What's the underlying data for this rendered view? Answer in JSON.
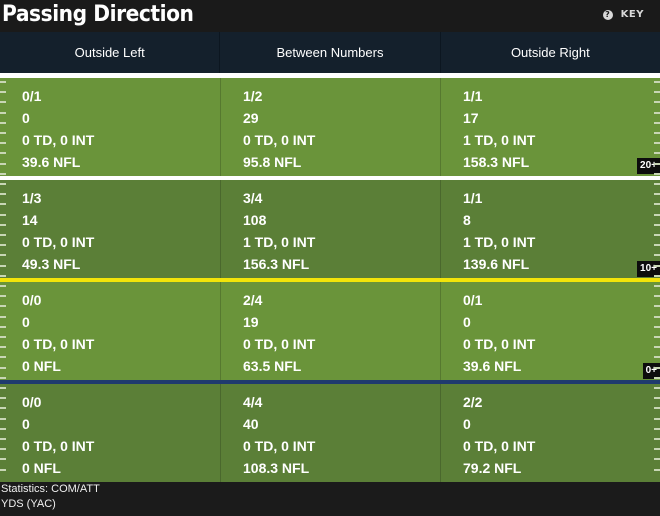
{
  "header": {
    "title": "Passing Direction",
    "key_label": "KEY"
  },
  "columns": [
    "Outside Left",
    "Between Numbers",
    "Outside Right"
  ],
  "zones": [
    {
      "label": "20+",
      "cells": [
        [
          "0/1",
          "0",
          "0 TD, 0 INT",
          "39.6 NFL"
        ],
        [
          "1/2",
          "29",
          "0 TD, 0 INT",
          "95.8 NFL"
        ],
        [
          "1/1",
          "17",
          "1 TD, 0 INT",
          "158.3 NFL"
        ]
      ]
    },
    {
      "label": "10+",
      "cells": [
        [
          "1/3",
          "14",
          "0 TD, 0 INT",
          "49.3 NFL"
        ],
        [
          "3/4",
          "108",
          "1 TD, 0 INT",
          "156.3 NFL"
        ],
        [
          "1/1",
          "8",
          "1 TD, 0 INT",
          "139.6 NFL"
        ]
      ]
    },
    {
      "label": "0+",
      "cells": [
        [
          "0/0",
          "0",
          "0 TD, 0 INT",
          "0 NFL"
        ],
        [
          "2/4",
          "19",
          "0 TD, 0 INT",
          "63.5 NFL"
        ],
        [
          "0/1",
          "0",
          "0 TD, 0 INT",
          "39.6 NFL"
        ]
      ]
    },
    {
      "label": "",
      "cells": [
        [
          "0/0",
          "0",
          "0 TD, 0 INT",
          "0 NFL"
        ],
        [
          "4/4",
          "40",
          "0 TD, 0 INT",
          "108.3 NFL"
        ],
        [
          "2/2",
          "0",
          "0 TD, 0 INT",
          "79.2 NFL"
        ]
      ]
    }
  ],
  "footer": {
    "line1": "Statistics: COM/ATT",
    "line2": "YDS (YAC)"
  },
  "colors": {
    "field_light": "#6a943a",
    "field_dark": "#5b7f37",
    "line_of_scrimmage": "#1f3a6e",
    "first_down_line": "#f2e40a",
    "yard_line": "#ffffff"
  }
}
